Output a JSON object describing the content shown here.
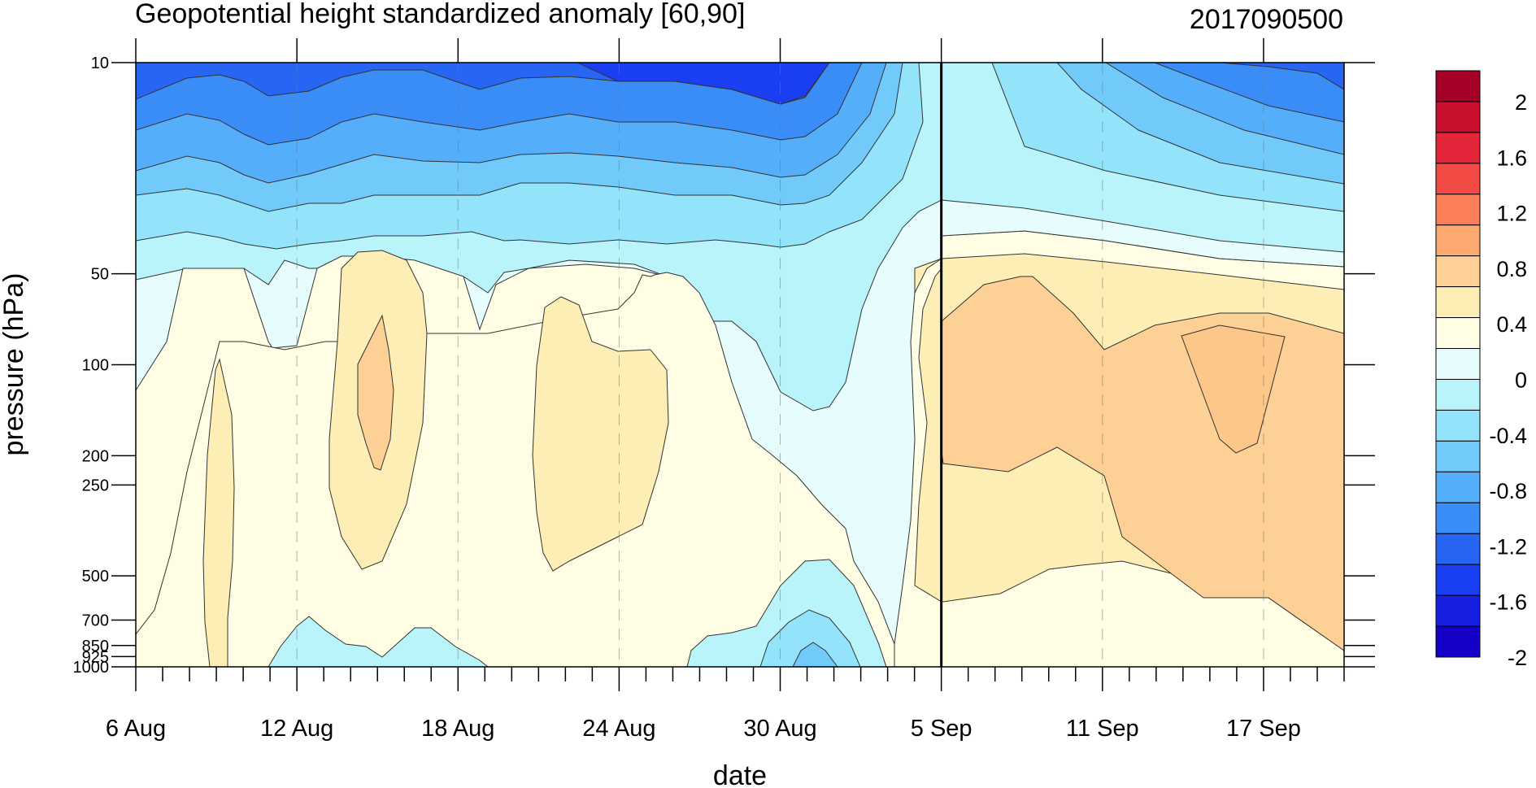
{
  "chart_data": {
    "type": "contour",
    "title": "Geopotential height standardized anomaly [60,90]",
    "date_label": "2017090500",
    "xlabel": "date",
    "ylabel": "pressure (hPa)",
    "x_ticks": [
      "6 Aug",
      "12 Aug",
      "18 Aug",
      "24 Aug",
      "30 Aug",
      "5 Sep",
      "11 Sep",
      "17 Sep"
    ],
    "x_range": [
      "2017-08-06",
      "2017-09-20"
    ],
    "y_ticks": [
      10,
      50,
      100,
      200,
      250,
      500,
      700,
      850,
      925,
      1000
    ],
    "y_tick_labels": [
      "10",
      "50",
      "100",
      "200",
      "250",
      "500",
      "700",
      "850",
      "925",
      "1000"
    ],
    "y_scale": "log",
    "y_range": [
      1000,
      10
    ],
    "analysis_date_marker": "2017-09-05",
    "colorbar": {
      "labels": [
        "2",
        "1.6",
        "1.2",
        "0.8",
        "0.4",
        "0",
        "-0.4",
        "-0.8",
        "-1.2",
        "-1.6",
        "-2"
      ],
      "colors": [
        "#a50026",
        "#c8102e",
        "#e3263a",
        "#f24a44",
        "#fc7e59",
        "#fdaa70",
        "#fdd095",
        "#fdeeb5",
        "#fffde4",
        "#e6fcfd",
        "#baf4fb",
        "#93e3fb",
        "#72cafb",
        "#55aefa",
        "#3a8cf7",
        "#2765f3",
        "#1a3ff2",
        "#1720e0",
        "#1500c8"
      ]
    },
    "grid": "dashed verticals at x ticks"
  }
}
